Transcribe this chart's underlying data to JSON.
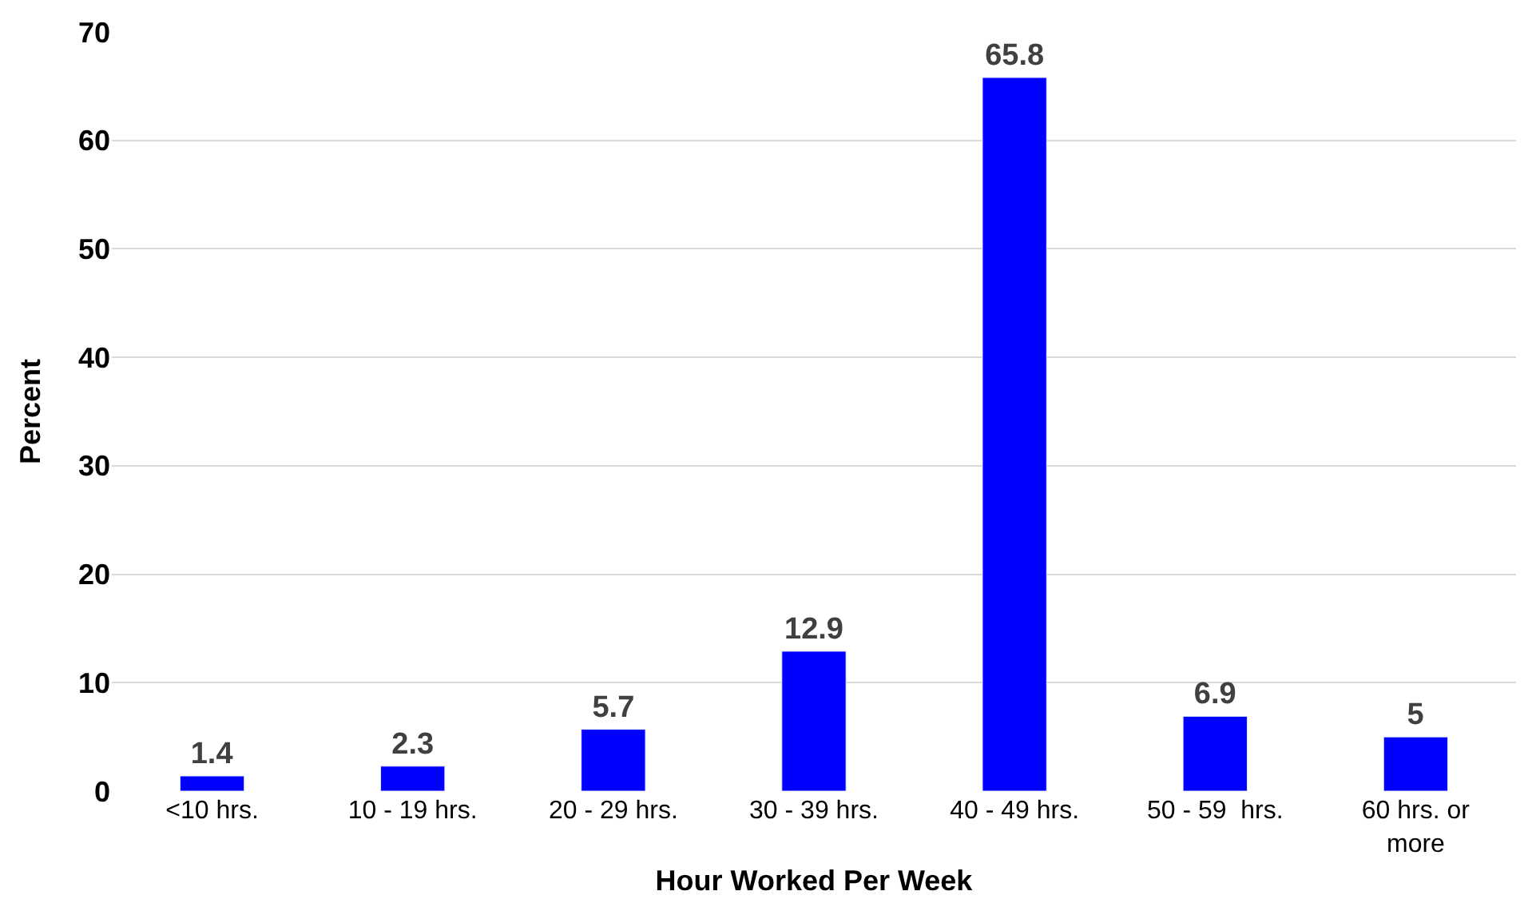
{
  "chart_data": {
    "type": "bar",
    "xlabel": "Hour Worked Per Week",
    "ylabel": "Percent",
    "categories": [
      "<10 hrs.",
      "10 - 19 hrs.",
      "20 - 29 hrs.",
      "30 - 39 hrs.",
      "40 - 49 hrs.",
      "50 - 59  hrs.",
      "60 hrs. or more"
    ],
    "values": [
      1.4,
      2.3,
      5.7,
      12.9,
      65.8,
      6.9,
      5
    ],
    "color": "#0000ff",
    "ylim": [
      0,
      70
    ],
    "yticks": [
      0,
      10,
      20,
      30,
      40,
      50,
      60,
      70
    ],
    "grid": "y",
    "data_labels": true,
    "legend": false
  }
}
